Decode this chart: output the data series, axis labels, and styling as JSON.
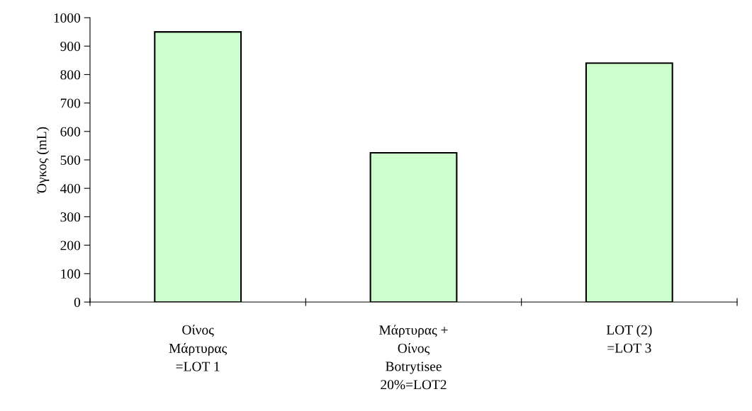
{
  "chart_data": {
    "type": "bar",
    "ylabel": "Όγκος (mL)",
    "categories": [
      "Οίνος\nΜάρτυρας\n=LOT 1",
      "Μάρτυρας +\nΟίνος\nBotrytisee\n20%=LOT2",
      "LOT (2)\n=LOT 3"
    ],
    "values": [
      950,
      525,
      840
    ],
    "color": "#ccffcc",
    "ylim": [
      0,
      1000
    ],
    "yticks": [
      0,
      100,
      200,
      300,
      400,
      500,
      600,
      700,
      800,
      900,
      1000
    ],
    "grid": false
  }
}
